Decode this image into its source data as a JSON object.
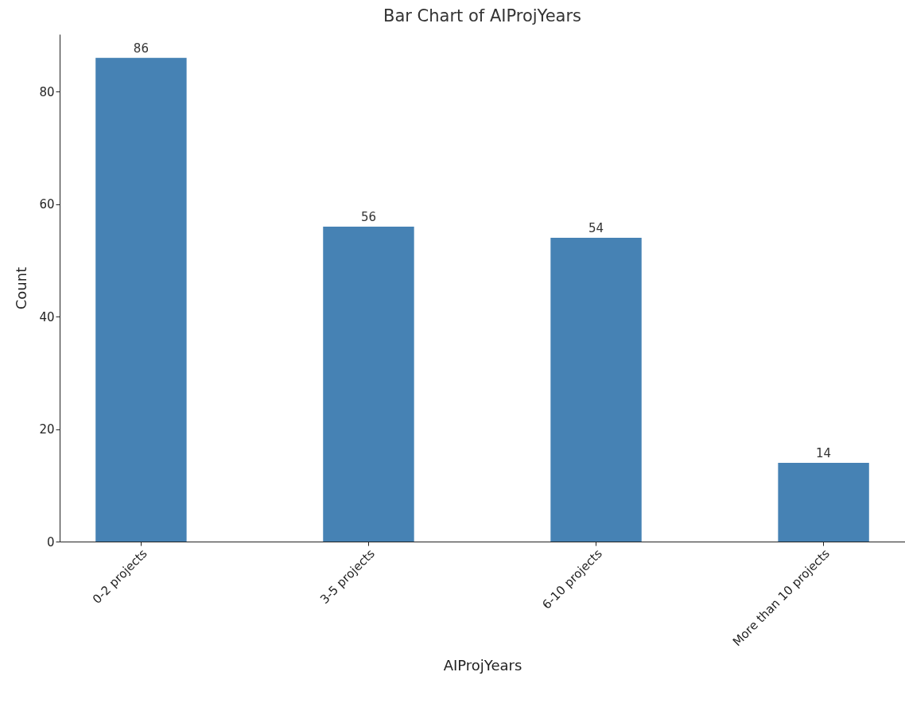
{
  "chart_data": {
    "type": "bar",
    "title": "Bar Chart of AIProjYears",
    "xlabel": "AIProjYears",
    "ylabel": "Count",
    "categories": [
      "0-2 projects",
      "3-5 projects",
      "6-10 projects",
      "More than 10 projects"
    ],
    "values": [
      86,
      56,
      54,
      14
    ],
    "color": "#4682b4",
    "ylim": [
      0,
      90.2
    ],
    "yticks": [
      0,
      20,
      40,
      60,
      80
    ],
    "grid": false,
    "data_labels": true
  }
}
